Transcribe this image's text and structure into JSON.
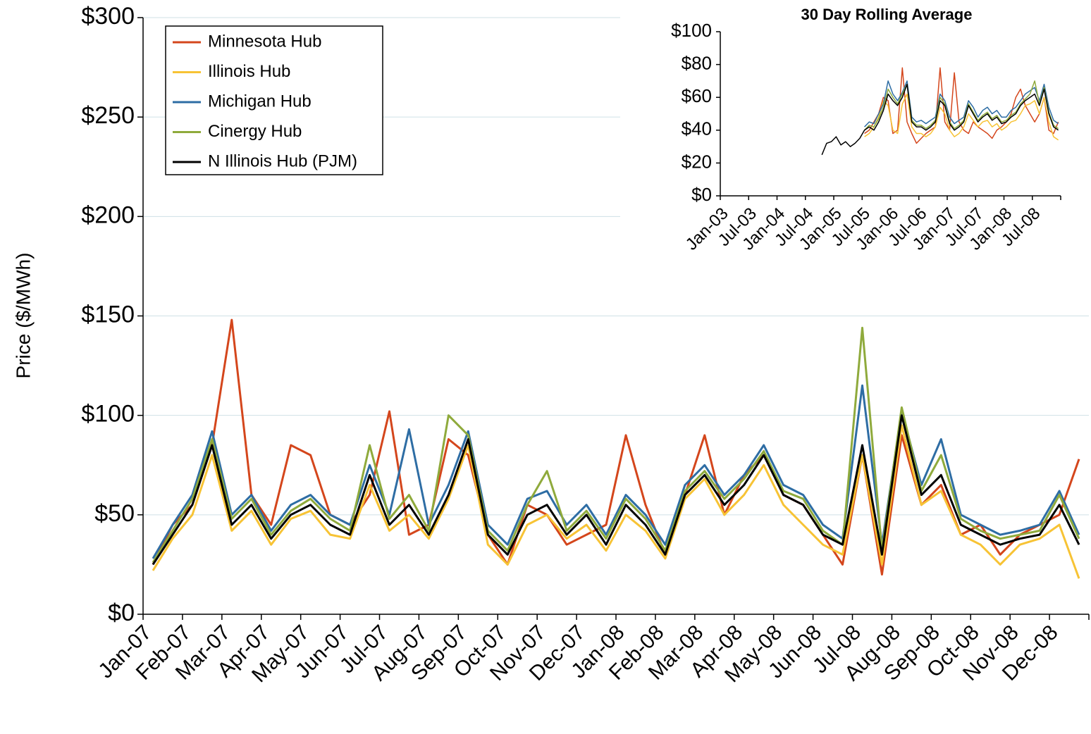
{
  "chart_data": [
    {
      "type": "line",
      "ylabel": "Price ($/MWh)",
      "categories": [
        "Jan-07",
        null,
        "Feb-07",
        null,
        "Mar-07",
        null,
        "Apr-07",
        null,
        "May-07",
        null,
        "Jun-07",
        null,
        "Jul-07",
        null,
        "Aug-07",
        null,
        "Sep-07",
        null,
        "Oct-07",
        null,
        "Nov-07",
        null,
        "Dec-07",
        null,
        "Jan-08",
        null,
        "Feb-08",
        null,
        "Mar-08",
        null,
        "Apr-08",
        null,
        "May-08",
        null,
        "Jun-08",
        null,
        "Jul-08",
        null,
        "Aug-08",
        null,
        "Sep-08",
        null,
        "Oct-08",
        null,
        "Nov-08",
        null,
        "Dec-08",
        null
      ],
      "ylim": [
        0,
        300
      ],
      "yticks": [
        {
          "value": 0,
          "label": "$0"
        },
        {
          "value": 50,
          "label": "$50"
        },
        {
          "value": 100,
          "label": "$100"
        },
        {
          "value": 150,
          "label": "$150"
        },
        {
          "value": 200,
          "label": "$200"
        },
        {
          "value": 250,
          "label": "$250"
        },
        {
          "value": 300,
          "label": "$300"
        }
      ],
      "grid": true,
      "legend": "upper-left",
      "series": [
        {
          "name": "Minnesota Hub",
          "color": "#d4461c",
          "values": [
            25,
            45,
            55,
            85,
            148,
            60,
            45,
            85,
            80,
            50,
            45,
            60,
            102,
            40,
            45,
            88,
            80,
            40,
            25,
            55,
            50,
            35,
            40,
            45,
            90,
            55,
            30,
            60,
            90,
            50,
            70,
            80,
            60,
            55,
            40,
            25,
            80,
            20,
            90,
            55,
            65,
            40,
            45,
            30,
            40,
            45,
            50,
            78
          ]
        },
        {
          "name": "Illinois Hub",
          "color": "#f7c335",
          "values": [
            22,
            38,
            50,
            80,
            42,
            52,
            35,
            48,
            52,
            40,
            38,
            65,
            42,
            50,
            38,
            58,
            85,
            35,
            25,
            45,
            50,
            38,
            45,
            32,
            50,
            42,
            28,
            58,
            68,
            50,
            60,
            75,
            55,
            45,
            35,
            30,
            80,
            25,
            95,
            55,
            62,
            40,
            35,
            25,
            35,
            38,
            45,
            18
          ]
        },
        {
          "name": "Michigan Hub",
          "color": "#2e6da4",
          "values": [
            28,
            45,
            60,
            92,
            50,
            60,
            42,
            55,
            60,
            50,
            45,
            75,
            50,
            93,
            45,
            65,
            92,
            45,
            35,
            58,
            62,
            45,
            55,
            40,
            60,
            50,
            35,
            65,
            75,
            60,
            70,
            85,
            65,
            60,
            45,
            38,
            115,
            35,
            102,
            65,
            88,
            50,
            45,
            40,
            42,
            45,
            62,
            40
          ]
        },
        {
          "name": "Cinergy Hub",
          "color": "#8faa3c",
          "values": [
            26,
            42,
            58,
            88,
            48,
            58,
            40,
            52,
            58,
            48,
            42,
            85,
            48,
            60,
            42,
            100,
            90,
            42,
            32,
            55,
            72,
            42,
            52,
            38,
            58,
            48,
            32,
            62,
            72,
            58,
            68,
            82,
            62,
            58,
            42,
            35,
            144,
            32,
            104,
            62,
            80,
            48,
            42,
            38,
            40,
            42,
            60,
            38
          ]
        },
        {
          "name": "N Illinois Hub (PJM)",
          "color": "#000000",
          "values": [
            25,
            40,
            55,
            85,
            45,
            55,
            38,
            50,
            55,
            45,
            40,
            70,
            45,
            55,
            40,
            60,
            88,
            40,
            30,
            50,
            55,
            40,
            50,
            35,
            55,
            45,
            30,
            60,
            70,
            55,
            65,
            80,
            60,
            55,
            40,
            35,
            85,
            30,
            100,
            60,
            70,
            45,
            40,
            35,
            38,
            40,
            55,
            35
          ]
        }
      ]
    },
    {
      "type": "line",
      "title": "30 Day Rolling Average",
      "categories": [
        "Jan-03",
        null,
        null,
        null,
        null,
        null,
        "Jul-03",
        null,
        null,
        null,
        null,
        null,
        "Jan-04",
        null,
        null,
        null,
        null,
        null,
        "Jul-04",
        null,
        null,
        null,
        null,
        null,
        "Jan-05",
        null,
        null,
        null,
        null,
        null,
        "Jul-05",
        null,
        null,
        null,
        null,
        null,
        "Jan-06",
        null,
        null,
        null,
        null,
        null,
        "Jul-06",
        null,
        null,
        null,
        null,
        null,
        "Jan-07",
        null,
        null,
        null,
        null,
        null,
        "Jul-07",
        null,
        null,
        null,
        null,
        null,
        "Jan-08",
        null,
        null,
        null,
        null,
        null,
        "Jul-08",
        null,
        null,
        null,
        null,
        null
      ],
      "ylim": [
        0,
        100
      ],
      "yticks": [
        {
          "value": 0,
          "label": "$0"
        },
        {
          "value": 20,
          "label": "$20"
        },
        {
          "value": 40,
          "label": "$40"
        },
        {
          "value": 60,
          "label": "$60"
        },
        {
          "value": 80,
          "label": "$80"
        },
        {
          "value": 100,
          "label": "$100"
        }
      ],
      "grid": false,
      "series": [
        {
          "color": "#d4461c",
          "values": [
            null,
            null,
            null,
            null,
            null,
            null,
            null,
            null,
            null,
            null,
            null,
            null,
            null,
            null,
            null,
            null,
            null,
            null,
            null,
            null,
            null,
            null,
            null,
            null,
            null,
            null,
            null,
            null,
            null,
            null,
            38,
            40,
            45,
            50,
            60,
            58,
            38,
            40,
            78,
            45,
            38,
            32,
            35,
            38,
            40,
            42,
            78,
            45,
            40,
            75,
            45,
            40,
            38,
            45,
            42,
            40,
            38,
            35,
            40,
            42,
            45,
            50,
            60,
            65,
            55,
            50,
            45,
            50,
            60,
            40,
            38,
            45
          ]
        },
        {
          "color": "#f7c335",
          "values": [
            null,
            null,
            null,
            null,
            null,
            null,
            null,
            null,
            null,
            null,
            null,
            null,
            null,
            null,
            null,
            null,
            null,
            null,
            null,
            null,
            null,
            null,
            null,
            null,
            null,
            null,
            null,
            null,
            null,
            null,
            36,
            38,
            42,
            48,
            58,
            55,
            40,
            38,
            56,
            62,
            42,
            38,
            38,
            36,
            38,
            42,
            54,
            50,
            40,
            36,
            38,
            42,
            50,
            46,
            42,
            45,
            46,
            42,
            44,
            40,
            42,
            45,
            46,
            50,
            55,
            56,
            58,
            50,
            60,
            45,
            36,
            34
          ]
        },
        {
          "color": "#2e6da4",
          "values": [
            null,
            null,
            null,
            null,
            null,
            null,
            null,
            null,
            null,
            null,
            null,
            null,
            null,
            null,
            null,
            null,
            null,
            null,
            null,
            null,
            null,
            null,
            null,
            null,
            null,
            null,
            null,
            null,
            null,
            null,
            42,
            45,
            44,
            50,
            56,
            70,
            62,
            58,
            63,
            70,
            48,
            45,
            46,
            44,
            46,
            48,
            62,
            58,
            48,
            44,
            46,
            48,
            58,
            54,
            48,
            52,
            54,
            50,
            52,
            48,
            48,
            52,
            54,
            58,
            62,
            64,
            66,
            58,
            68,
            54,
            46,
            44
          ]
        },
        {
          "color": "#8faa3c",
          "values": [
            null,
            null,
            null,
            null,
            null,
            null,
            null,
            null,
            null,
            null,
            null,
            null,
            null,
            null,
            null,
            null,
            null,
            null,
            null,
            null,
            null,
            null,
            null,
            null,
            null,
            null,
            null,
            null,
            null,
            null,
            40,
            43,
            42,
            47,
            54,
            65,
            60,
            56,
            62,
            68,
            46,
            43,
            43,
            41,
            43,
            46,
            60,
            56,
            45,
            41,
            43,
            46,
            56,
            51,
            46,
            49,
            51,
            47,
            49,
            45,
            46,
            49,
            51,
            56,
            59,
            62,
            70,
            56,
            66,
            51,
            43,
            41
          ]
        },
        {
          "color": "#000000",
          "values": [
            null,
            null,
            null,
            null,
            null,
            null,
            null,
            null,
            null,
            null,
            null,
            null,
            null,
            null,
            null,
            null,
            null,
            null,
            null,
            null,
            null,
            25,
            32,
            33,
            36,
            31,
            33,
            30,
            32,
            35,
            40,
            42,
            40,
            45,
            52,
            62,
            58,
            55,
            60,
            68,
            45,
            42,
            42,
            40,
            42,
            45,
            58,
            55,
            44,
            40,
            42,
            45,
            55,
            50,
            45,
            48,
            50,
            46,
            48,
            44,
            45,
            48,
            50,
            55,
            58,
            60,
            62,
            55,
            65,
            50,
            42,
            40
          ]
        }
      ]
    }
  ]
}
